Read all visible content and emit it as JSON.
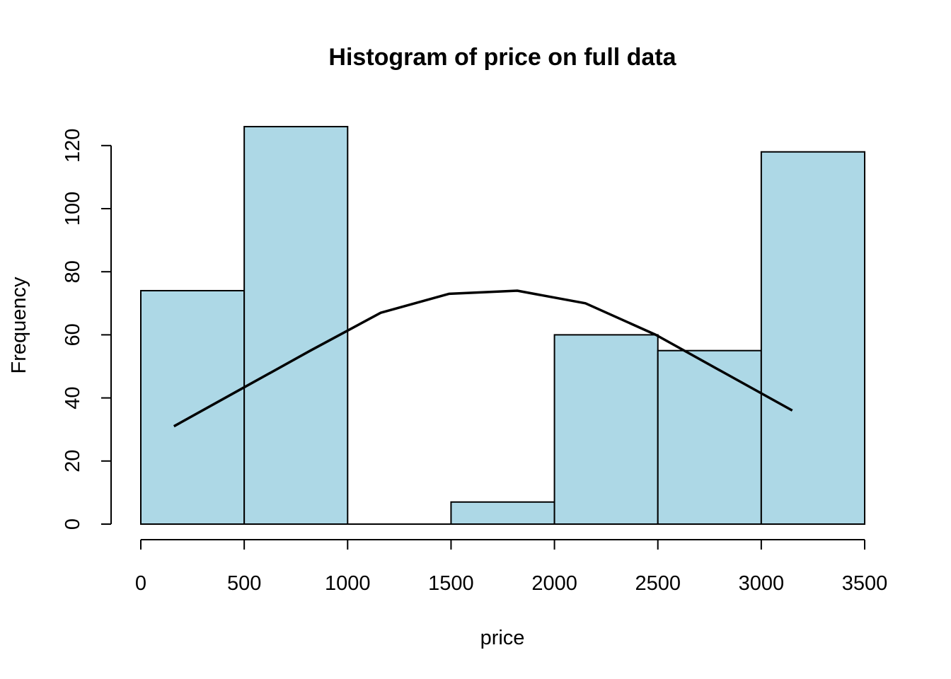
{
  "chart_data": {
    "type": "bar",
    "title": "Histogram of price on full data",
    "xlabel": "price",
    "ylabel": "Frequency",
    "bins": [
      {
        "from": 0,
        "to": 500,
        "count": 74
      },
      {
        "from": 500,
        "to": 1000,
        "count": 126
      },
      {
        "from": 1000,
        "to": 1500,
        "count": 0
      },
      {
        "from": 1500,
        "to": 2000,
        "count": 7
      },
      {
        "from": 2000,
        "to": 2500,
        "count": 60
      },
      {
        "from": 2500,
        "to": 3000,
        "count": 55
      },
      {
        "from": 3000,
        "to": 3500,
        "count": 118
      }
    ],
    "xlim": [
      0,
      3500
    ],
    "ylim": [
      0,
      126
    ],
    "x_ticks": [
      "0",
      "500",
      "1000",
      "1500",
      "2000",
      "2500",
      "3000",
      "3500"
    ],
    "y_ticks": [
      "0",
      "20",
      "40",
      "60",
      "80",
      "100",
      "120"
    ],
    "curve": {
      "x": [
        160,
        490,
        820,
        1160,
        1490,
        1820,
        2150,
        2490,
        2820,
        3150
      ],
      "y": [
        31,
        43,
        55,
        67,
        73,
        74,
        70,
        60,
        48,
        36
      ]
    },
    "bar_color": "#add8e6",
    "grid": false,
    "legend": "none"
  }
}
